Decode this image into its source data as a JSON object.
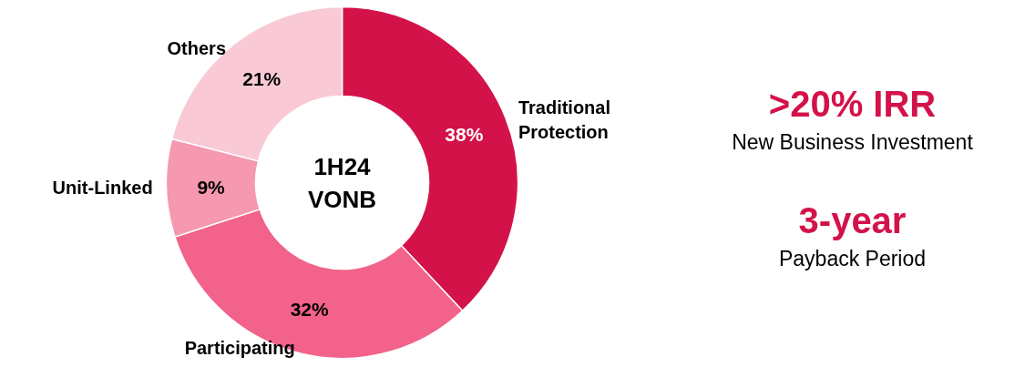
{
  "chart_data": {
    "type": "donut",
    "title": "1H24\nVONB",
    "categories": [
      "Traditional Protection",
      "Participating",
      "Unit-Linked",
      "Others"
    ],
    "values": [
      38,
      32,
      9,
      21
    ],
    "colors": [
      "#d4124a",
      "#f2628a",
      "#f598b0",
      "#f9c9d6"
    ],
    "value_labels": [
      "38%",
      "32%",
      "9%",
      "21%"
    ],
    "annotations": [
      ">20% IRR",
      "New Business Investment",
      "3-year",
      "Payback Period"
    ]
  }
}
